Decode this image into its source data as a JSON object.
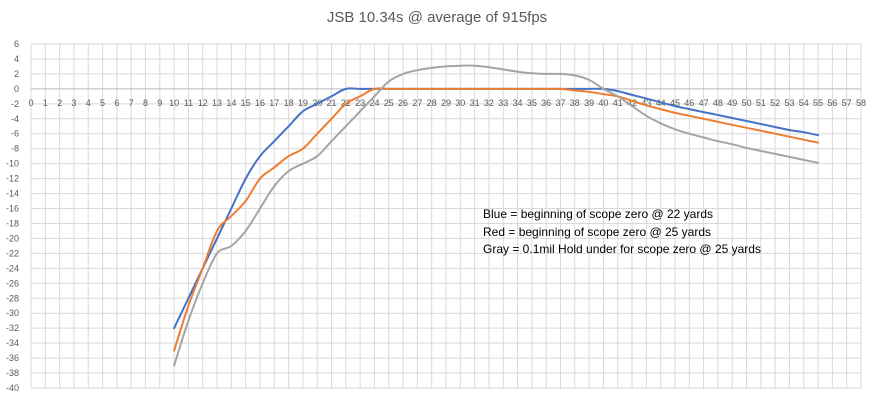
{
  "chart_data": {
    "type": "line",
    "title": "JSB 10.34s @ average of 915fps",
    "xlabel": "",
    "ylabel": "",
    "xlim": [
      0,
      58
    ],
    "ylim": [
      -40,
      6
    ],
    "x_ticks": [
      0,
      1,
      2,
      3,
      4,
      5,
      6,
      7,
      8,
      9,
      10,
      11,
      12,
      13,
      14,
      15,
      16,
      17,
      18,
      19,
      20,
      21,
      22,
      23,
      24,
      25,
      26,
      27,
      28,
      29,
      30,
      31,
      32,
      33,
      34,
      35,
      36,
      37,
      38,
      39,
      40,
      41,
      42,
      43,
      44,
      45,
      46,
      47,
      48,
      49,
      50,
      51,
      52,
      53,
      54,
      55,
      56,
      57,
      58
    ],
    "y_ticks": [
      6,
      4,
      2,
      0,
      -2,
      -4,
      -6,
      -8,
      -10,
      -12,
      -14,
      -16,
      -18,
      -20,
      -22,
      -24,
      -26,
      -28,
      -30,
      -32,
      -34,
      -36,
      -38,
      -40
    ],
    "grid": true,
    "x": [
      10,
      11,
      12,
      13,
      14,
      15,
      16,
      17,
      18,
      19,
      20,
      21,
      22,
      23,
      24,
      25,
      26,
      27,
      28,
      29,
      30,
      31,
      32,
      33,
      34,
      35,
      36,
      37,
      38,
      39,
      40,
      41,
      42,
      43,
      44,
      45,
      46,
      47,
      48,
      49,
      50,
      51,
      52,
      53,
      54,
      55
    ],
    "series": [
      {
        "color": "#4472c4",
        "values": [
          -32,
          -28,
          -24,
          -20,
          -16,
          -12,
          -9,
          -7,
          -5,
          -3,
          -2,
          -1,
          0,
          0,
          0,
          0,
          0,
          0,
          0,
          0,
          0,
          0,
          0,
          0,
          0,
          0,
          0,
          0,
          0,
          0,
          0,
          -0.3,
          -0.8,
          -1.3,
          -1.8,
          -2.3,
          -2.7,
          -3.1,
          -3.5,
          -3.9,
          -4.3,
          -4.7,
          -5.1,
          -5.5,
          -5.8,
          -6.2
        ]
      },
      {
        "color": "#ed7d31",
        "values": [
          -35,
          -29,
          -24,
          -19,
          -17,
          -15,
          -12,
          -10.5,
          -9,
          -8,
          -6,
          -4,
          -2,
          -1,
          0,
          0,
          0,
          0,
          0,
          0,
          0,
          0,
          0,
          0,
          0,
          0,
          0,
          0,
          -0.2,
          -0.4,
          -0.7,
          -1,
          -1.6,
          -2.2,
          -2.7,
          -3.2,
          -3.6,
          -4,
          -4.4,
          -4.8,
          -5.2,
          -5.6,
          -6,
          -6.4,
          -6.8,
          -7.2
        ]
      },
      {
        "color": "#a5a5a5",
        "values": [
          -37,
          -31,
          -26,
          -22,
          -21,
          -19,
          -16,
          -13,
          -11,
          -10,
          -9,
          -7,
          -5,
          -3,
          -1,
          1,
          2,
          2.5,
          2.8,
          3,
          3.1,
          3.1,
          2.9,
          2.6,
          2.3,
          2.1,
          2,
          2,
          1.8,
          1.2,
          0,
          -1,
          -2.3,
          -3.6,
          -4.6,
          -5.4,
          -6,
          -6.5,
          -7,
          -7.4,
          -7.9,
          -8.3,
          -8.7,
          -9.1,
          -9.5,
          -9.9
        ]
      }
    ],
    "annotations": [
      "Blue = beginning of scope zero @ 22 yards",
      "Red = beginning of scope zero @ 25 yards",
      "Gray = 0.1mil Hold under for scope zero @ 25 yards"
    ]
  }
}
